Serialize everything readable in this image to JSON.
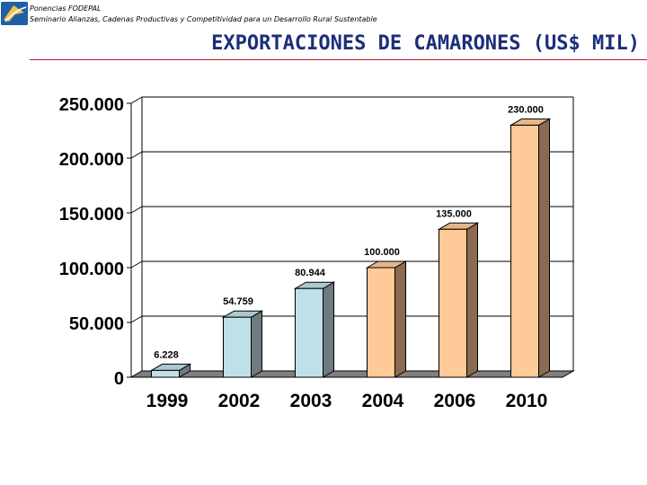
{
  "header": {
    "line1": "Ponencias FODEPAL",
    "line2": "Seminario Alianzas, Cadenas Productivas y Competitividad para un Desarrollo Rural Sustentable",
    "logo_icon": "fodepal-logo-icon"
  },
  "title": "EXPORTACIONES DE CAMARONES (US$ MIL)",
  "colors": {
    "title": "#1c2e7a",
    "rule": "#c8102e",
    "bar_blue_front": "#bfe0e6",
    "bar_blue_side": "#6c7b7e",
    "bar_orange_front": "#ffc998",
    "bar_orange_side": "#8a6b52"
  },
  "chart_data": {
    "type": "bar",
    "categories": [
      "1999",
      "2002",
      "2003",
      "2004",
      "2006",
      "2010"
    ],
    "values": [
      6228,
      54759,
      80944,
      100000,
      135000,
      230000
    ],
    "data_labels": [
      "6.228",
      "54.759",
      "80.944",
      "100.000",
      "135.000",
      "230.000"
    ],
    "bar_colors": [
      "blue",
      "blue",
      "blue",
      "orange",
      "orange",
      "orange"
    ],
    "yticks": [
      0,
      50000,
      100000,
      150000,
      200000,
      250000
    ],
    "ytick_labels": [
      "0",
      "50.000",
      "100.000",
      "150.000",
      "200.000",
      "250.000"
    ],
    "ylim": [
      0,
      250000
    ],
    "grid": true,
    "style": "3d",
    "title": "",
    "xlabel": "",
    "ylabel": ""
  }
}
